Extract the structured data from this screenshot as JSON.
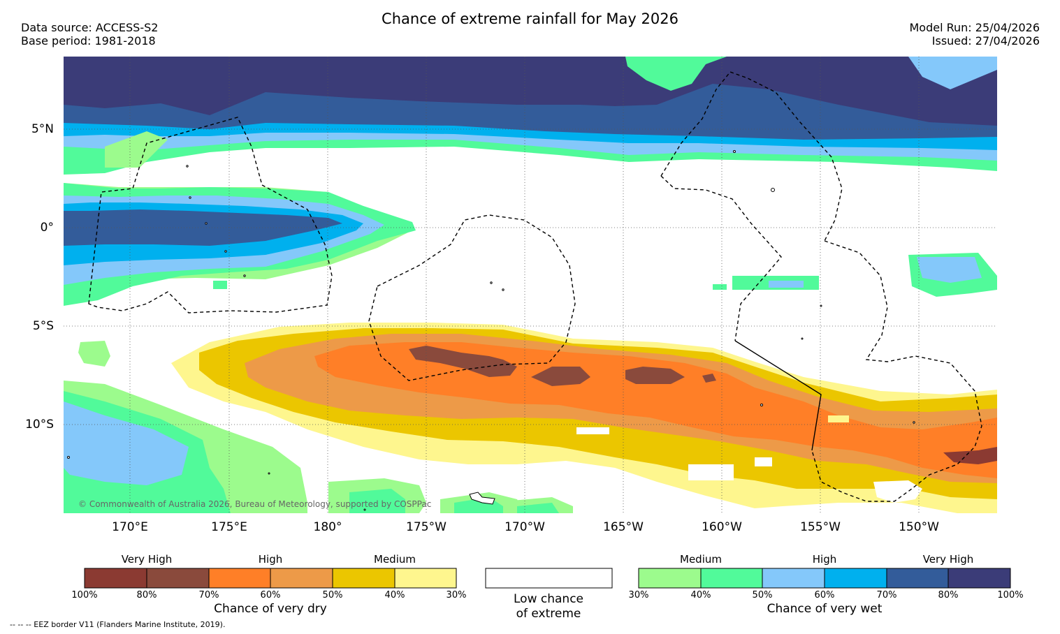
{
  "header": {
    "title": "Chance of extreme rainfall for May 2026",
    "data_source": "Data source: ACCESS-S2",
    "base_period": "Base period: 1981-2018",
    "model_run": "Model Run: 25/04/2026",
    "issued": "Issued: 27/04/2026"
  },
  "map": {
    "lon_labels": [
      "170°E",
      "175°E",
      "180°",
      "175°W",
      "170°W",
      "165°W",
      "160°W",
      "155°W",
      "150°W"
    ],
    "lat_labels": [
      "5°N",
      "0°",
      "5°S",
      "10°S"
    ],
    "copyright": "© Commonwealth of Australia 2026, Bureau of Meteorology, supported by COSPPac",
    "colors": {
      "dry_vh1": "#8b3a32",
      "dry_vh2": "#8a4a3c",
      "dry_h1": "#ff7f27",
      "dry_h2": "#ed9a48",
      "dry_m1": "#ebc600",
      "dry_m2": "#fef68e",
      "wet_m1": "#9cfb8d",
      "wet_m2": "#51fa9a",
      "wet_h1": "#84c8fa",
      "wet_h2": "#00b0ee",
      "wet_vh1": "#335c9a",
      "wet_vh2": "#3b3c78"
    }
  },
  "legend": {
    "dry": {
      "categories": [
        "Very High",
        "High",
        "Medium"
      ],
      "percent_labels": [
        "100%",
        "80%",
        "70%",
        "60%",
        "50%",
        "40%",
        "30%"
      ],
      "label": "Chance of very dry"
    },
    "low": {
      "line1": "Low chance",
      "line2": "of extreme"
    },
    "wet": {
      "categories": [
        "Medium",
        "High",
        "Very High"
      ],
      "percent_labels": [
        "30%",
        "40%",
        "50%",
        "60%",
        "70%",
        "80%",
        "100%"
      ],
      "label": "Chance of very wet"
    }
  },
  "footer": {
    "eez_note": "--  --  -- EEZ border V11 (Flanders Marine Institute, 2019)."
  }
}
